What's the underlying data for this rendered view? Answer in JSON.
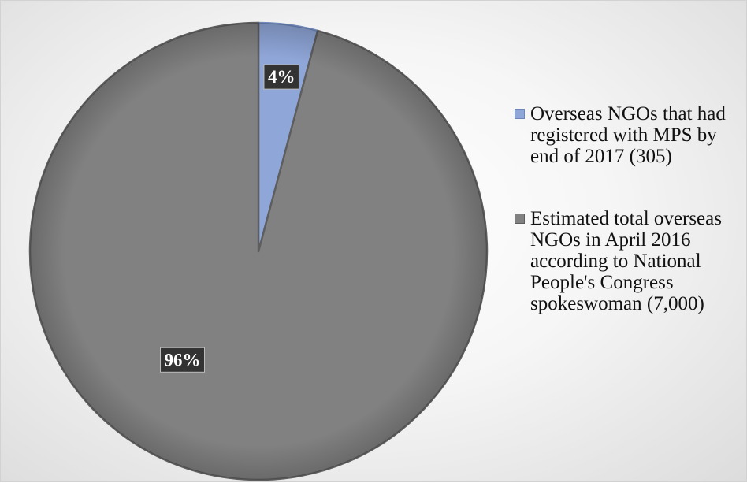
{
  "chart_data": {
    "type": "pie",
    "start_angle_deg": 0,
    "direction": "clockwise",
    "slices": [
      {
        "label": "Overseas NGOs that had registered with MPS by end of 2017 (305)",
        "value": 305,
        "percent_label": "4%",
        "color": "#8fa6d8",
        "edge_color": "#6f86b8"
      },
      {
        "label": "Estimated total overseas NGOs in April 2016 according to National People's Congress spokeswoman (7,000)",
        "value": 7000,
        "percent_label": "96%",
        "color": "#818181",
        "edge_color": "#5e5e5e"
      }
    ],
    "legend_position": "right",
    "data_label_background": "#333333",
    "background_color": "#f3f3f3"
  }
}
